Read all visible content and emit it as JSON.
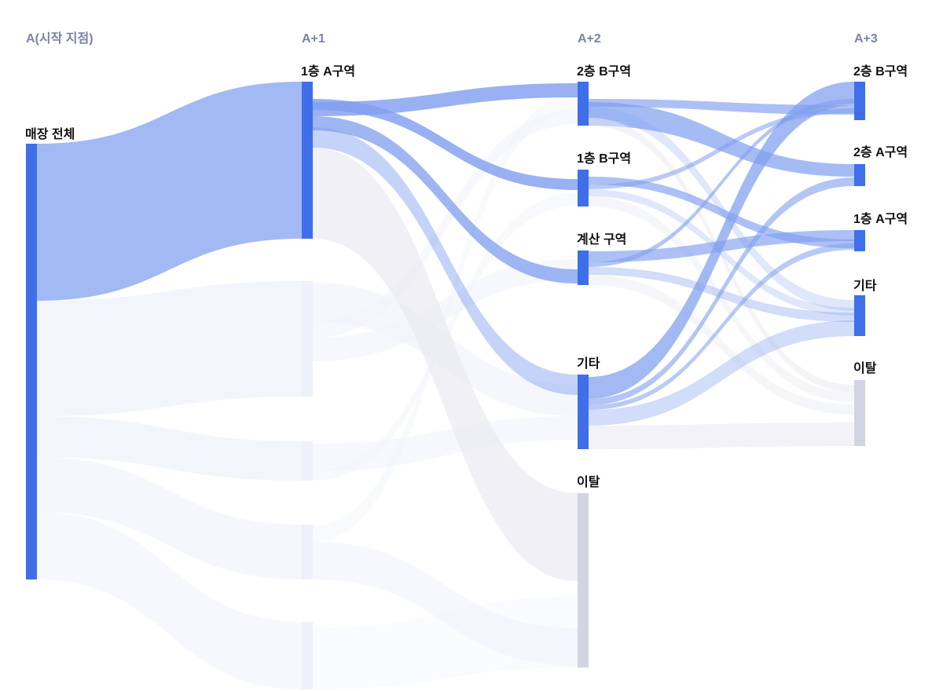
{
  "chart_data": {
    "type": "sankey",
    "columns": [
      "A(시작 지점)",
      "A+1",
      "A+2",
      "A+3"
    ],
    "colors": {
      "node": "#3f6fe8",
      "dropout_node": "#d2d4e2",
      "focus_link": "#7f9eef",
      "faded_link": "#f1f3fb",
      "dropout_link": "#e9eaf1"
    },
    "nodes": {
      "start": {
        "label": "매장 전체"
      },
      "a1_1a": {
        "label": "1층 A구역"
      },
      "a2_2b": {
        "label": "2층 B구역"
      },
      "a2_1b": {
        "label": "1층 B구역"
      },
      "a2_pay": {
        "label": "계산 구역"
      },
      "a2_etc": {
        "label": "기타"
      },
      "a2_drop": {
        "label": "이탈"
      },
      "a3_2b": {
        "label": "2층 B구역"
      },
      "a3_2a": {
        "label": "2층 A구역"
      },
      "a3_1a": {
        "label": "1층 A구역"
      },
      "a3_etc": {
        "label": "기타"
      },
      "a3_drop": {
        "label": "이탈"
      }
    }
  }
}
